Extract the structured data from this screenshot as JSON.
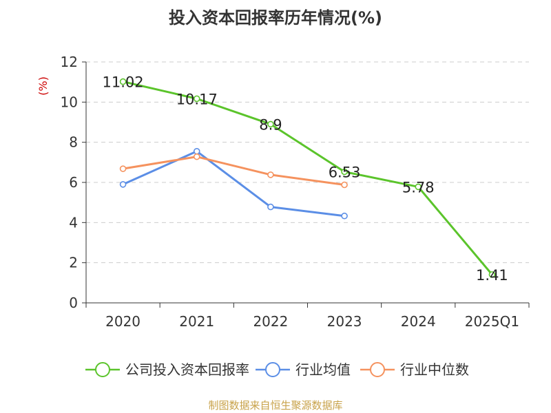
{
  "title": "投入资本回报率历年情况(%)",
  "source": "制图数据来自恒生聚源数据库",
  "colors": {
    "company": "#5bc42b",
    "industry_avg": "#5b8ee6",
    "industry_median": "#f5925e",
    "axis": "#333333",
    "grid": "#cccccc",
    "unit": "#cc0000"
  },
  "chart_data": {
    "type": "line",
    "categories": [
      "2020",
      "2021",
      "2022",
      "2023",
      "2024",
      "2025Q1"
    ],
    "ylabel": "(%)",
    "ylim": [
      0,
      12
    ],
    "yticks": [
      0,
      2,
      4,
      6,
      8,
      10,
      12
    ],
    "grid": true,
    "legend_position": "bottom",
    "series": [
      {
        "name": "公司投入资本回报率",
        "color_key": "company",
        "values": [
          11.02,
          10.17,
          8.9,
          6.53,
          5.78,
          1.41
        ],
        "labels": true
      },
      {
        "name": "行业均值",
        "color_key": "industry_avg",
        "values": [
          5.9,
          7.55,
          4.78,
          4.33,
          null,
          null
        ],
        "labels": false
      },
      {
        "name": "行业中位数",
        "color_key": "industry_median",
        "values": [
          6.68,
          7.28,
          6.38,
          5.88,
          null,
          null
        ],
        "labels": false
      }
    ]
  }
}
